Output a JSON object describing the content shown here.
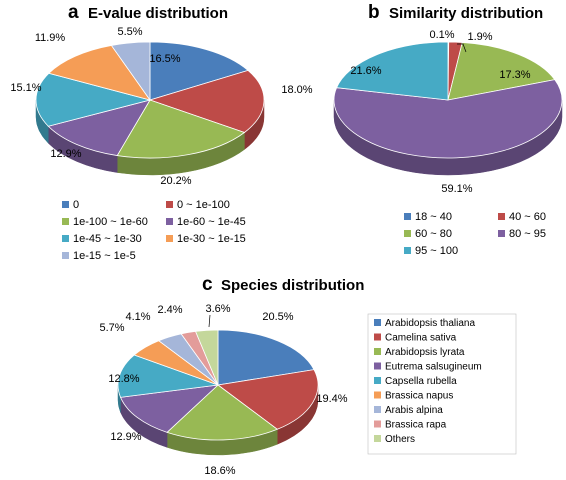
{
  "chart_data": [
    {
      "type": "pie",
      "panel": "a",
      "title": "E-value distribution",
      "categories": [
        "0",
        "0 ~ 1e-100",
        "1e-100 ~ 1e-60",
        "1e-60 ~ 1e-45",
        "1e-45 ~ 1e-30",
        "1e-30 ~ 1e-15",
        "1e-15 ~ 1e-5"
      ],
      "values": [
        16.5,
        18.0,
        20.2,
        12.9,
        15.1,
        11.9,
        5.5
      ],
      "labels": [
        "16.5%",
        "18.0%",
        "20.2%",
        "12.9%",
        "15.1%",
        "11.9%",
        "5.5%"
      ],
      "colors": [
        "#4a7ebb",
        "#be4b48",
        "#98b954",
        "#7d60a0",
        "#46aac5",
        "#f59d56",
        "#a5b6d9"
      ],
      "legend_position": "bottom"
    },
    {
      "type": "pie",
      "panel": "b",
      "title": "Similarity distribution",
      "categories": [
        "18 ~ 40",
        "40 ~ 60",
        "60 ~ 80",
        "80 ~ 95",
        "95 ~ 100"
      ],
      "values": [
        0.1,
        1.9,
        17.3,
        59.1,
        21.6
      ],
      "labels": [
        "0.1%",
        "1.9%",
        "17.3%",
        "59.1%",
        "21.6%"
      ],
      "colors": [
        "#4a7ebb",
        "#be4b48",
        "#98b954",
        "#7d60a0",
        "#46aac5"
      ],
      "legend_position": "bottom"
    },
    {
      "type": "pie",
      "panel": "c",
      "title": "Species distribution",
      "categories": [
        "Arabidopsis thaliana",
        "Camelina sativa",
        "Arabidopsis lyrata",
        "Eutrema salsugineum",
        "Capsella rubella",
        "Brassica napus",
        "Arabis alpina",
        "Brassica rapa",
        "Others"
      ],
      "values": [
        20.5,
        19.4,
        18.6,
        12.9,
        12.8,
        5.7,
        4.1,
        2.4,
        3.6
      ],
      "labels": [
        "20.5%",
        "19.4%",
        "18.6%",
        "12.9%",
        "12.8%",
        "5.7%",
        "4.1%",
        "2.4%",
        "3.6%"
      ],
      "colors": [
        "#4a7ebb",
        "#be4b48",
        "#98b954",
        "#7d60a0",
        "#46aac5",
        "#f59d56",
        "#a5b6d9",
        "#e39c9a",
        "#c4d79b"
      ],
      "legend_position": "right"
    }
  ]
}
